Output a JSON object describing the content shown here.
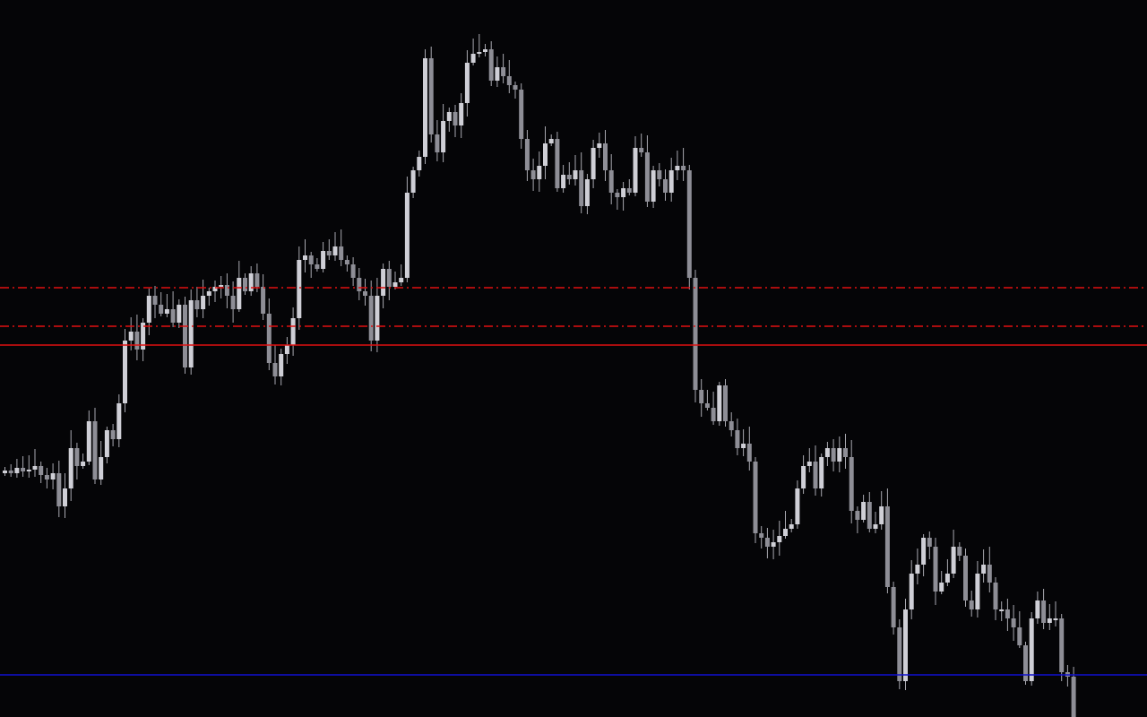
{
  "chart_data": {
    "type": "candlestick",
    "title": "",
    "xlabel": "",
    "ylabel": "",
    "grid": false,
    "ylim": [
      0,
      800
    ],
    "background": "#050507",
    "colors": {
      "bullish": "#cfcfd6",
      "bearish": "#8e8e96",
      "wick": "#a8a8b0"
    },
    "first_open": 272,
    "closes": [
      275,
      272,
      278,
      274,
      276,
      280,
      270,
      265,
      272,
      235,
      255,
      300,
      280,
      285,
      330,
      265,
      290,
      320,
      310,
      350,
      420,
      430,
      410,
      440,
      470,
      460,
      450,
      455,
      440,
      460,
      390,
      465,
      455,
      470,
      475,
      480,
      482,
      470,
      455,
      490,
      475,
      495,
      480,
      450,
      395,
      380,
      405,
      415,
      445,
      510,
      515,
      505,
      500,
      520,
      515,
      525,
      510,
      505,
      490,
      475,
      470,
      420,
      470,
      500,
      480,
      485,
      490,
      585,
      610,
      625,
      735,
      650,
      630,
      665,
      675,
      660,
      685,
      730,
      740,
      742,
      745,
      710,
      725,
      715,
      705,
      700,
      645,
      610,
      600,
      615,
      640,
      645,
      590,
      605,
      600,
      610,
      570,
      600,
      635,
      640,
      610,
      585,
      580,
      590,
      585,
      635,
      630,
      575,
      610,
      600,
      585,
      610,
      615,
      610,
      490,
      365,
      350,
      345,
      330,
      370,
      330,
      320,
      300,
      305,
      285,
      205,
      200,
      190,
      195,
      202,
      210,
      215,
      255,
      280,
      285,
      255,
      290,
      300,
      285,
      300,
      290,
      230,
      220,
      240,
      210,
      215,
      235,
      145,
      100,
      40,
      120,
      160,
      170,
      200,
      190,
      140,
      150,
      160,
      190,
      180,
      130,
      120,
      160,
      170,
      150,
      120,
      120,
      110,
      100,
      80,
      40,
      110,
      130,
      105,
      110,
      110,
      50,
      45,
      0
    ],
    "levels": [
      {
        "value": 479,
        "color": "#e01010",
        "style": "dash-dot"
      },
      {
        "value": 436,
        "color": "#e01010",
        "style": "dash-dot"
      },
      {
        "value": 415,
        "color": "#e01010",
        "style": "solid"
      },
      {
        "value": 47,
        "color": "#1010d0",
        "style": "solid"
      }
    ]
  }
}
